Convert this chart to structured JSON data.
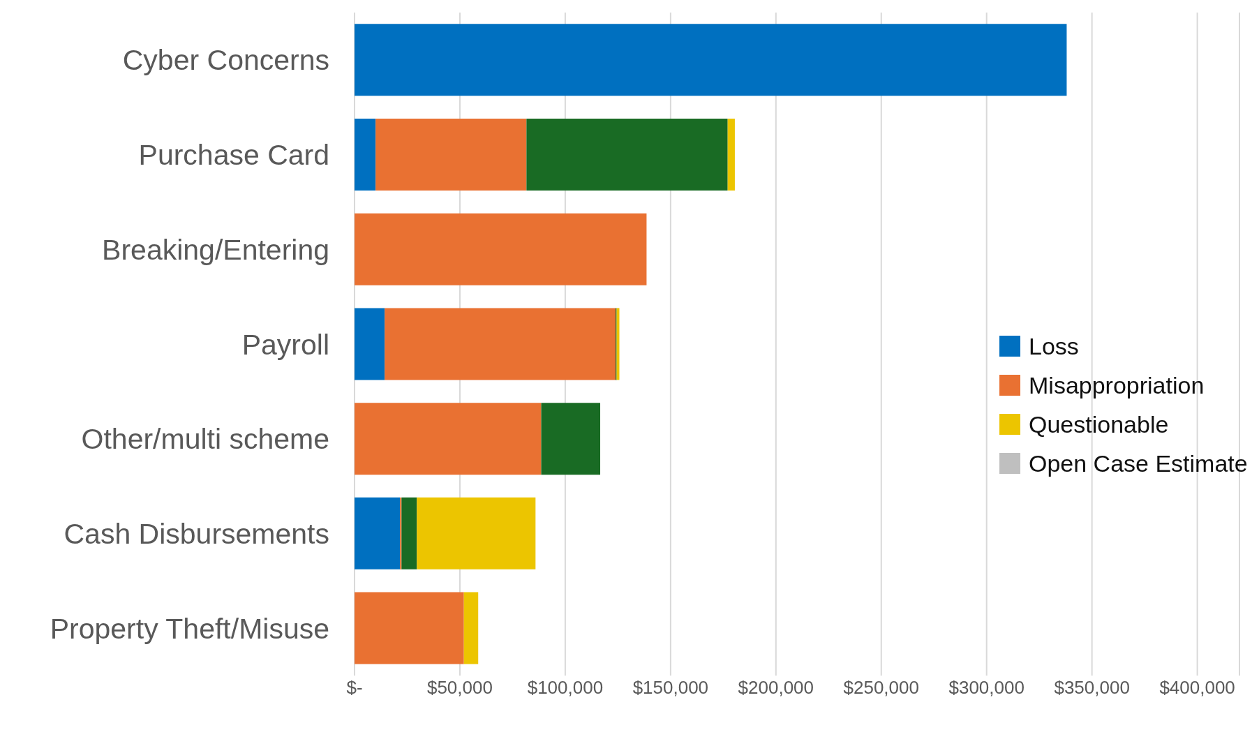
{
  "chart_data": {
    "type": "bar",
    "orientation": "horizontal",
    "stacked": true,
    "categories": [
      "Cyber Concerns",
      "Purchase Card",
      "Breaking/Entering",
      "Payroll",
      "Other/multi scheme",
      "Cash Disbursements",
      "Property Theft/Misuse"
    ],
    "series": [
      {
        "name": "Loss",
        "color": "#0070c0",
        "values": [
          338000,
          10000,
          null,
          14300,
          null,
          21600,
          null
        ]
      },
      {
        "name": "Misappropriation",
        "color": "#e97132",
        "values": [
          null,
          71600,
          138600,
          109600,
          88600,
          700,
          51900
        ]
      },
      {
        "color": "#196b24",
        "values": [
          null,
          95500,
          null,
          500,
          28000,
          7300,
          null
        ]
      },
      {
        "name": "Questionable",
        "color": "#ecc500",
        "values": [
          null,
          3400,
          null,
          1300,
          null,
          56300,
          6800
        ]
      },
      {
        "name": "Open Case Estimate",
        "color": "#bfbfbf",
        "values": [
          null,
          null,
          null,
          null,
          null,
          null,
          null
        ]
      }
    ],
    "xlim": [
      0,
      420000
    ],
    "xticks": [
      {
        "value": 0,
        "label": "$-"
      },
      {
        "value": 50000,
        "label": "$50,000"
      },
      {
        "value": 100000,
        "label": "$100,000"
      },
      {
        "value": 150000,
        "label": "$150,000"
      },
      {
        "value": 200000,
        "label": "$200,000"
      },
      {
        "value": 250000,
        "label": "$250,000"
      },
      {
        "value": 300000,
        "label": "$300,000"
      },
      {
        "value": 350000,
        "label": "$350,000"
      },
      {
        "value": 400000,
        "label": "$400,000"
      }
    ],
    "grid": "x",
    "legend": "right"
  }
}
